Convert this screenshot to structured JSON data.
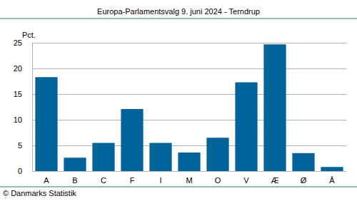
{
  "chart_data": {
    "type": "bar",
    "title": "Europa-Parlamentsvalg 9. juni 2024 - Terndrup",
    "y_label": "Pct.",
    "annotations": [
      "© Danmarks Statistik"
    ],
    "categories": [
      "A",
      "B",
      "C",
      "F",
      "I",
      "M",
      "O",
      "V",
      "Æ",
      "Ø",
      "Å"
    ],
    "values": [
      18.3,
      2.6,
      5.5,
      12.1,
      5.5,
      3.6,
      6.5,
      17.3,
      24.7,
      3.5,
      0.8
    ],
    "color": "#00639a",
    "ylim": [
      0,
      25
    ],
    "yticks": [
      0,
      5,
      10,
      15,
      20,
      25
    ],
    "grid": true
  }
}
